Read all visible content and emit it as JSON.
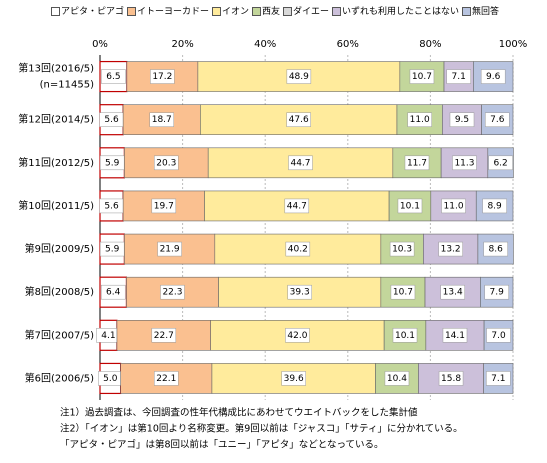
{
  "chart_data": {
    "type": "stacked-bar-horizontal",
    "categories": [
      "第13回(2016/5)",
      "第12回(2014/5)",
      "第11回(2012/5)",
      "第10回(2011/5)",
      "第9回(2009/5)",
      "第8回(2008/5)",
      "第7回(2007/5)",
      "第6回(2006/5)"
    ],
    "category_note": "(n=11455)",
    "series": [
      {
        "name": "アピタ・ピアゴ",
        "color": "#ffffff",
        "values": [
          6.5,
          5.6,
          5.9,
          5.6,
          5.9,
          6.4,
          4.1,
          5.0
        ],
        "value_labels": [
          "6.5",
          "5.6",
          "5.9",
          "5.6",
          "5.9",
          "6.4",
          "4.1",
          "5.0"
        ]
      },
      {
        "name": "イトーヨーカドー",
        "color": "#fac090",
        "values": [
          17.2,
          18.7,
          20.3,
          19.7,
          21.9,
          22.3,
          22.7,
          22.1
        ],
        "value_labels": [
          "17.2",
          "18.7",
          "20.3",
          "19.7",
          "21.9",
          "22.3",
          "22.7",
          "22.1"
        ]
      },
      {
        "name": "イオン",
        "color": "#ffeb9c",
        "values": [
          48.9,
          47.6,
          44.7,
          44.7,
          40.2,
          39.3,
          42.0,
          39.6
        ],
        "value_labels": [
          "48.9",
          "47.6",
          "44.7",
          "44.7",
          "40.2",
          "39.3",
          "42.0",
          "39.6"
        ]
      },
      {
        "name": "西友",
        "color": "#c3d69b",
        "values": [
          10.7,
          11.0,
          11.7,
          10.1,
          10.3,
          10.7,
          10.1,
          10.4
        ],
        "value_labels": [
          "10.7",
          "11.0",
          "11.7",
          "10.1",
          "10.3",
          "10.7",
          "10.1",
          "10.4"
        ]
      },
      {
        "name": "ダイエー",
        "color": "#d9d9d9",
        "values": [
          null,
          null,
          null,
          null,
          null,
          null,
          null,
          null
        ]
      },
      {
        "name": "いずれも利用したことはない",
        "color": "#ccc0da",
        "values": [
          7.1,
          9.5,
          11.3,
          11.0,
          13.2,
          13.4,
          14.1,
          15.8
        ],
        "value_labels": [
          "7.1",
          "9.5",
          "11.3",
          "11.0",
          "13.2",
          "13.4",
          "14.1",
          "15.8"
        ]
      },
      {
        "name": "無回答",
        "color": "#b8c4e0",
        "values": [
          9.6,
          7.6,
          6.2,
          8.9,
          8.6,
          7.9,
          7.0,
          7.1
        ],
        "value_labels": [
          "9.6",
          "7.6",
          "6.2",
          "8.9",
          "8.6",
          "7.9",
          "7.0",
          "7.1"
        ]
      }
    ],
    "xlim": [
      0,
      100
    ],
    "xticks": [
      {
        "value": 0,
        "label": "0%"
      },
      {
        "value": 20,
        "label": "20%"
      },
      {
        "value": 40,
        "label": "40%"
      },
      {
        "value": 60,
        "label": "60%"
      },
      {
        "value": 80,
        "label": "80%"
      },
      {
        "value": 100,
        "label": "100%"
      }
    ],
    "grid": true,
    "notes": [
      "注1）過去調査は、今回調査の性年代構成比にあわせてウエイトバックをした集計値",
      "注2）「イオン」は第10回より名称変更。第9回以前は「ジャスコ」「サティ」に分かれている。",
      "「アピタ・ピアゴ」は第8回以前は「ユニー」「アピタ」などとなっている。"
    ]
  }
}
